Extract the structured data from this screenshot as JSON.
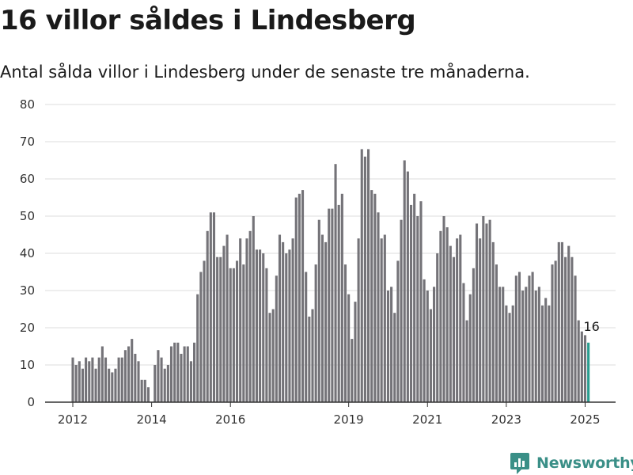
{
  "header": {
    "title": "16 villor såldes i Lindesberg",
    "subtitle": "Antal sålda villor i Lindesberg under de senaste tre månaderna."
  },
  "brand": {
    "name": "Newsworthy",
    "icon": "newsworthy-logo-icon",
    "color": "#3a8f87"
  },
  "chart_data": {
    "type": "bar",
    "start_month": "2012-01",
    "ylim": [
      0,
      80
    ],
    "yticks": [
      0,
      10,
      20,
      30,
      40,
      50,
      60,
      70,
      80
    ],
    "xticks": [
      "2012",
      "2014",
      "2016",
      "2019",
      "2021",
      "2023",
      "2025"
    ],
    "grid": true,
    "bar_color": "#747378",
    "highlight_color": "#2a9d8f",
    "last_label": "16",
    "values": [
      12,
      10,
      11,
      9,
      12,
      11,
      12,
      9,
      12,
      15,
      12,
      9,
      8,
      9,
      12,
      12,
      14,
      15,
      17,
      13,
      11,
      6,
      6,
      4,
      null,
      10,
      14,
      12,
      9,
      10,
      15,
      16,
      16,
      13,
      15,
      15,
      11,
      16,
      29,
      35,
      38,
      46,
      51,
      51,
      39,
      39,
      42,
      45,
      36,
      36,
      38,
      44,
      37,
      44,
      46,
      50,
      41,
      41,
      40,
      36,
      24,
      25,
      34,
      45,
      43,
      40,
      41,
      44,
      55,
      56,
      57,
      35,
      23,
      25,
      37,
      49,
      45,
      43,
      52,
      52,
      64,
      53,
      56,
      37,
      29,
      17,
      27,
      44,
      68,
      66,
      68,
      57,
      56,
      51,
      44,
      45,
      30,
      31,
      24,
      38,
      49,
      65,
      62,
      53,
      56,
      50,
      54,
      33,
      30,
      25,
      31,
      40,
      46,
      50,
      47,
      42,
      39,
      44,
      45,
      32,
      22,
      29,
      36,
      48,
      44,
      50,
      48,
      49,
      43,
      37,
      31,
      31,
      26,
      24,
      26,
      34,
      35,
      30,
      31,
      34,
      35,
      30,
      31,
      26,
      28,
      26,
      37,
      38,
      43,
      43,
      39,
      42,
      39,
      34,
      22,
      19,
      18,
      16
    ]
  }
}
